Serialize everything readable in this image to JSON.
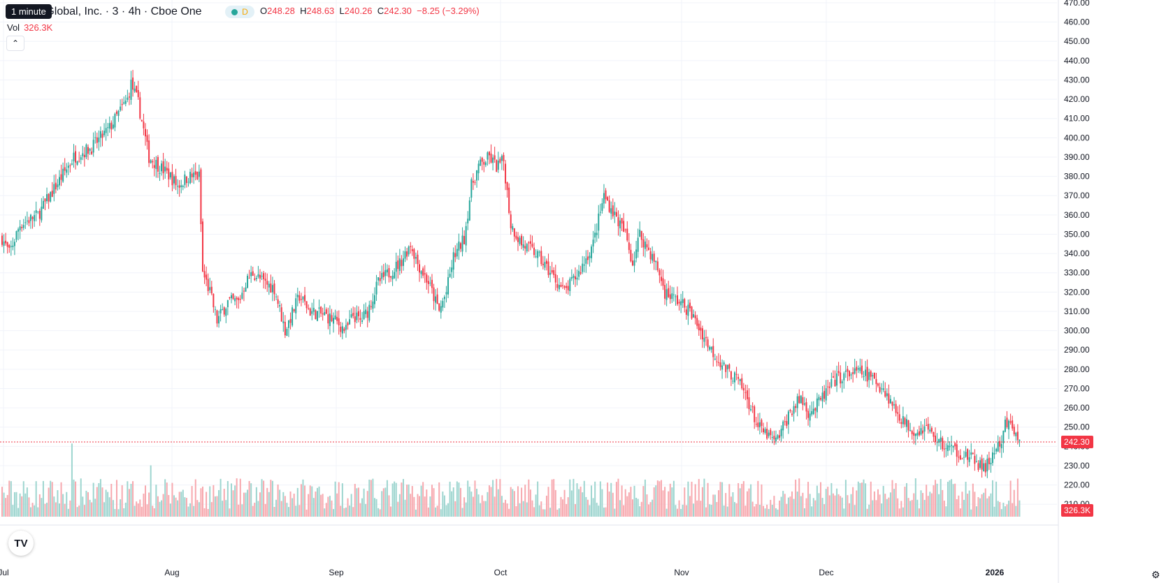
{
  "tooltip": "1 minute",
  "title": "se Global, Inc. · 3 · 4h · Cboe One",
  "interval_badge": "D",
  "ohlc": {
    "o_label": "O",
    "o": "248.28",
    "h_label": "H",
    "h": "248.63",
    "l_label": "L",
    "l": "240.26",
    "c_label": "C",
    "c": "242.30",
    "change": "−8.25 (−3.29%)"
  },
  "volume": {
    "label": "Vol",
    "value": "326.3K"
  },
  "collapse_icon": "chevron-up-icon",
  "logo_text": "TV",
  "colors": {
    "up": "#26a69a",
    "down": "#f23645",
    "up_vol": "#9dd5cf",
    "down_vol": "#f7a8ae",
    "price_line": "#f23645",
    "grid": "#f0f3fa"
  },
  "chart_data": {
    "type": "candlestick",
    "y_axis": {
      "ticks": [
        "470.00",
        "460.00",
        "450.00",
        "440.00",
        "430.00",
        "420.00",
        "410.00",
        "400.00",
        "390.00",
        "380.00",
        "370.00",
        "360.00",
        "350.00",
        "340.00",
        "330.00",
        "320.00",
        "310.00",
        "300.00",
        "290.00",
        "280.00",
        "270.00",
        "260.00",
        "250.00",
        "240.00",
        "230.00",
        "220.00",
        "210.00"
      ],
      "min": 205,
      "max": 470
    },
    "x_axis": {
      "labels": [
        "Jul",
        "Aug",
        "Sep",
        "Oct",
        "Nov",
        "Dec",
        "2026"
      ]
    },
    "current_price": "242.30",
    "current_volume": "326.3K",
    "anchors": [
      [
        0,
        348
      ],
      [
        4,
        340
      ],
      [
        10,
        355
      ],
      [
        20,
        360
      ],
      [
        30,
        375
      ],
      [
        40,
        390
      ],
      [
        50,
        395
      ],
      [
        60,
        405
      ],
      [
        70,
        420
      ],
      [
        72,
        428
      ],
      [
        76,
        418
      ],
      [
        82,
        390
      ],
      [
        88,
        385
      ],
      [
        94,
        380
      ],
      [
        98,
        375
      ],
      [
        104,
        380
      ],
      [
        110,
        380
      ],
      [
        112,
        330
      ],
      [
        116,
        320
      ],
      [
        120,
        305
      ],
      [
        126,
        315
      ],
      [
        132,
        315
      ],
      [
        136,
        325
      ],
      [
        140,
        330
      ],
      [
        146,
        325
      ],
      [
        152,
        322
      ],
      [
        158,
        300
      ],
      [
        166,
        318
      ],
      [
        172,
        310
      ],
      [
        180,
        308
      ],
      [
        186,
        305
      ],
      [
        192,
        300
      ],
      [
        196,
        308
      ],
      [
        200,
        305
      ],
      [
        204,
        310
      ],
      [
        210,
        325
      ],
      [
        216,
        330
      ],
      [
        222,
        335
      ],
      [
        228,
        345
      ],
      [
        232,
        335
      ],
      [
        238,
        325
      ],
      [
        244,
        310
      ],
      [
        248,
        320
      ],
      [
        252,
        338
      ],
      [
        258,
        348
      ],
      [
        262,
        375
      ],
      [
        266,
        385
      ],
      [
        272,
        390
      ],
      [
        276,
        385
      ],
      [
        280,
        388
      ],
      [
        284,
        355
      ],
      [
        290,
        345
      ],
      [
        298,
        340
      ],
      [
        306,
        330
      ],
      [
        314,
        320
      ],
      [
        322,
        330
      ],
      [
        330,
        345
      ],
      [
        336,
        370
      ],
      [
        342,
        360
      ],
      [
        348,
        350
      ],
      [
        352,
        335
      ],
      [
        356,
        350
      ],
      [
        362,
        340
      ],
      [
        366,
        332
      ],
      [
        370,
        320
      ],
      [
        378,
        315
      ],
      [
        384,
        310
      ],
      [
        390,
        300
      ],
      [
        396,
        290
      ],
      [
        404,
        280
      ],
      [
        410,
        275
      ],
      [
        416,
        265
      ],
      [
        422,
        250
      ],
      [
        428,
        245
      ],
      [
        432,
        242
      ],
      [
        436,
        250
      ],
      [
        440,
        258
      ],
      [
        446,
        265
      ],
      [
        450,
        258
      ],
      [
        454,
        260
      ],
      [
        460,
        268
      ],
      [
        466,
        275
      ],
      [
        474,
        278
      ],
      [
        480,
        278
      ],
      [
        486,
        275
      ],
      [
        492,
        270
      ],
      [
        498,
        260
      ],
      [
        504,
        252
      ],
      [
        510,
        248
      ],
      [
        516,
        250
      ],
      [
        520,
        245
      ],
      [
        526,
        240
      ],
      [
        532,
        238
      ],
      [
        538,
        235
      ],
      [
        544,
        232
      ],
      [
        548,
        228
      ],
      [
        552,
        233
      ],
      [
        554,
        238
      ],
      [
        558,
        240
      ],
      [
        560,
        252
      ],
      [
        564,
        250
      ],
      [
        568,
        242
      ]
    ]
  }
}
